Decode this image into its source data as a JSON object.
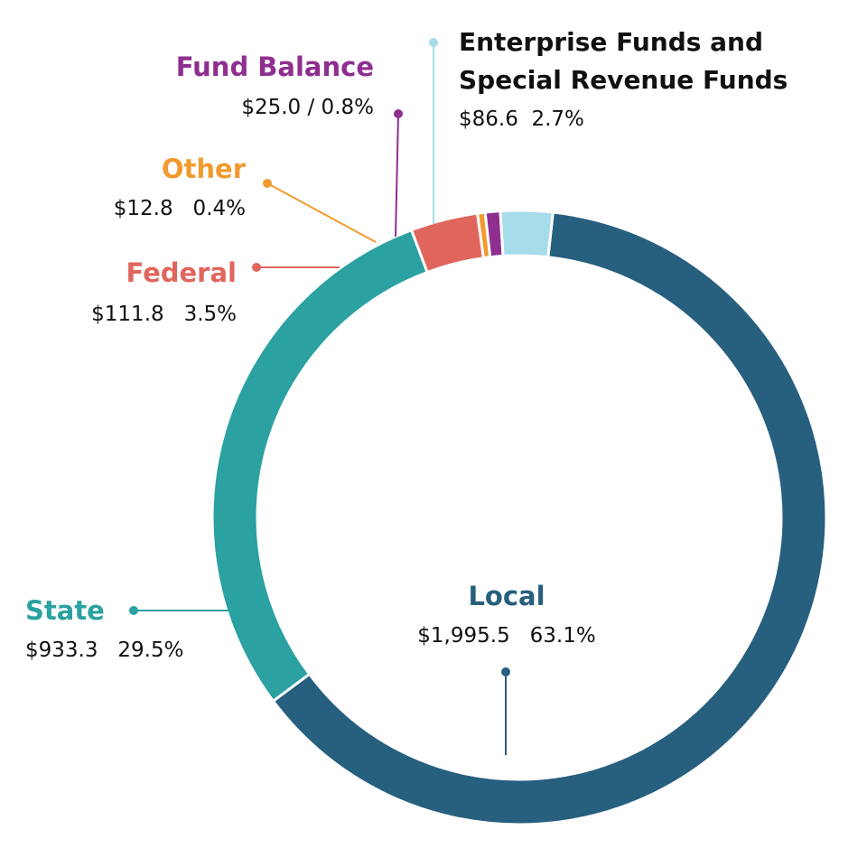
{
  "chart_data": {
    "type": "pie",
    "style": "donut",
    "start_at": "top",
    "direction": "clockwise",
    "categories": [
      "Local",
      "State",
      "Federal",
      "Other",
      "Fund Balance",
      "Enterprise Funds and Special Revenue Funds"
    ],
    "values": [
      1995.5,
      933.3,
      111.8,
      12.8,
      25.0,
      86.6
    ],
    "percents": [
      63.1,
      29.5,
      3.5,
      0.4,
      0.8,
      2.7
    ],
    "colors": [
      "#275f7e",
      "#2ba1a1",
      "#e0665d",
      "#f29a2e",
      "#8e2f8f",
      "#a7dcea"
    ],
    "labels": {
      "local": {
        "name": "Local",
        "value": "$1,995.5   63.1%"
      },
      "state": {
        "name": "State",
        "value": "$933.3   29.5%"
      },
      "federal": {
        "name": "Federal",
        "value": "$111.8   3.5%"
      },
      "other": {
        "name": "Other",
        "value": "$12.8   0.4%"
      },
      "fund_balance": {
        "name": "Fund Balance",
        "value": "$25.0 / 0.8%"
      },
      "enterprise": {
        "name_line1": "Enterprise Funds and",
        "name_line2": "Special Revenue Funds",
        "value": "$86.6  2.7%"
      }
    }
  }
}
